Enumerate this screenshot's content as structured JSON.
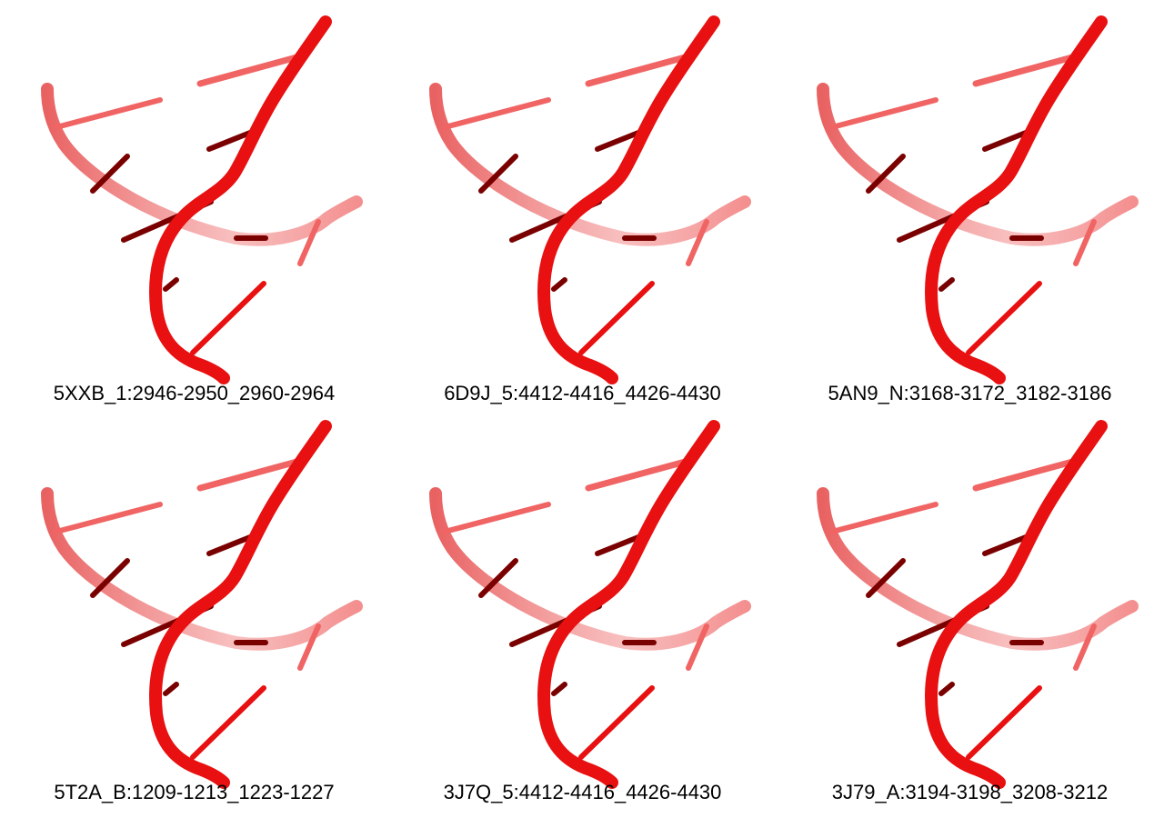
{
  "panels": [
    {
      "label": "5XXB_1:2946-2950_2960-2964"
    },
    {
      "label": "6D9J_5:4412-4416_4426-4430"
    },
    {
      "label": "5AN9_N:3168-3172_3182-3186"
    },
    {
      "label": "5T2A_B:1209-1213_1223-1227"
    },
    {
      "label": "3J7Q_5:4412-4416_4426-4430"
    },
    {
      "label": "3J79_A:3194-3198_3208-3212"
    }
  ],
  "colors": {
    "strand_front": "#e81010",
    "strand_back": "#f06464",
    "base_dark": "#7a0000",
    "background": "#ffffff"
  }
}
